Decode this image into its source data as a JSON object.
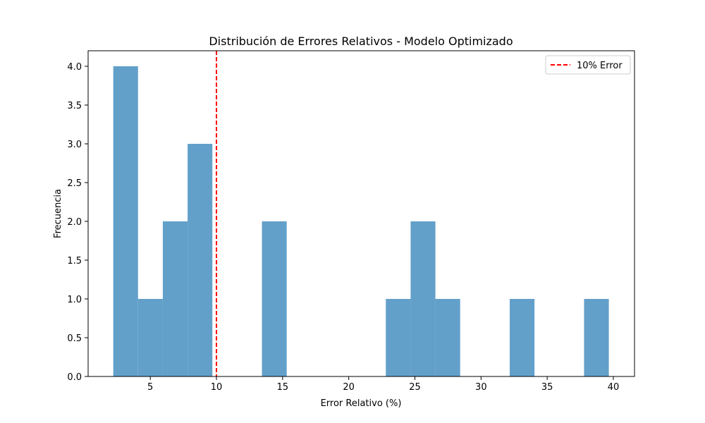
{
  "chart_data": {
    "type": "bar",
    "title": "Distribución de Errores Relativos - Modelo Optimizado",
    "xlabel": "Error Relativo (%)",
    "ylabel": "Frecuencia",
    "bar_color": "#62a0ca",
    "bins": {
      "start": 2.2,
      "width": 1.873,
      "counts": [
        4,
        1,
        2,
        3,
        0,
        0,
        2,
        0,
        0,
        0,
        0,
        1,
        2,
        1,
        0,
        0,
        1,
        0,
        0,
        1
      ]
    },
    "xlim": [
      0.3,
      41.6
    ],
    "ylim": [
      0,
      4.2
    ],
    "xticks": [
      5,
      10,
      15,
      20,
      25,
      30,
      35,
      40
    ],
    "yticks": [
      0.0,
      0.5,
      1.0,
      1.5,
      2.0,
      2.5,
      3.0,
      3.5,
      4.0
    ],
    "reference_line": {
      "x": 10,
      "label": "10% Error",
      "color": "#ff0000",
      "style": "dashed"
    },
    "legend": {
      "position": "top-right",
      "entries": [
        "10% Error"
      ]
    },
    "grid": false
  }
}
